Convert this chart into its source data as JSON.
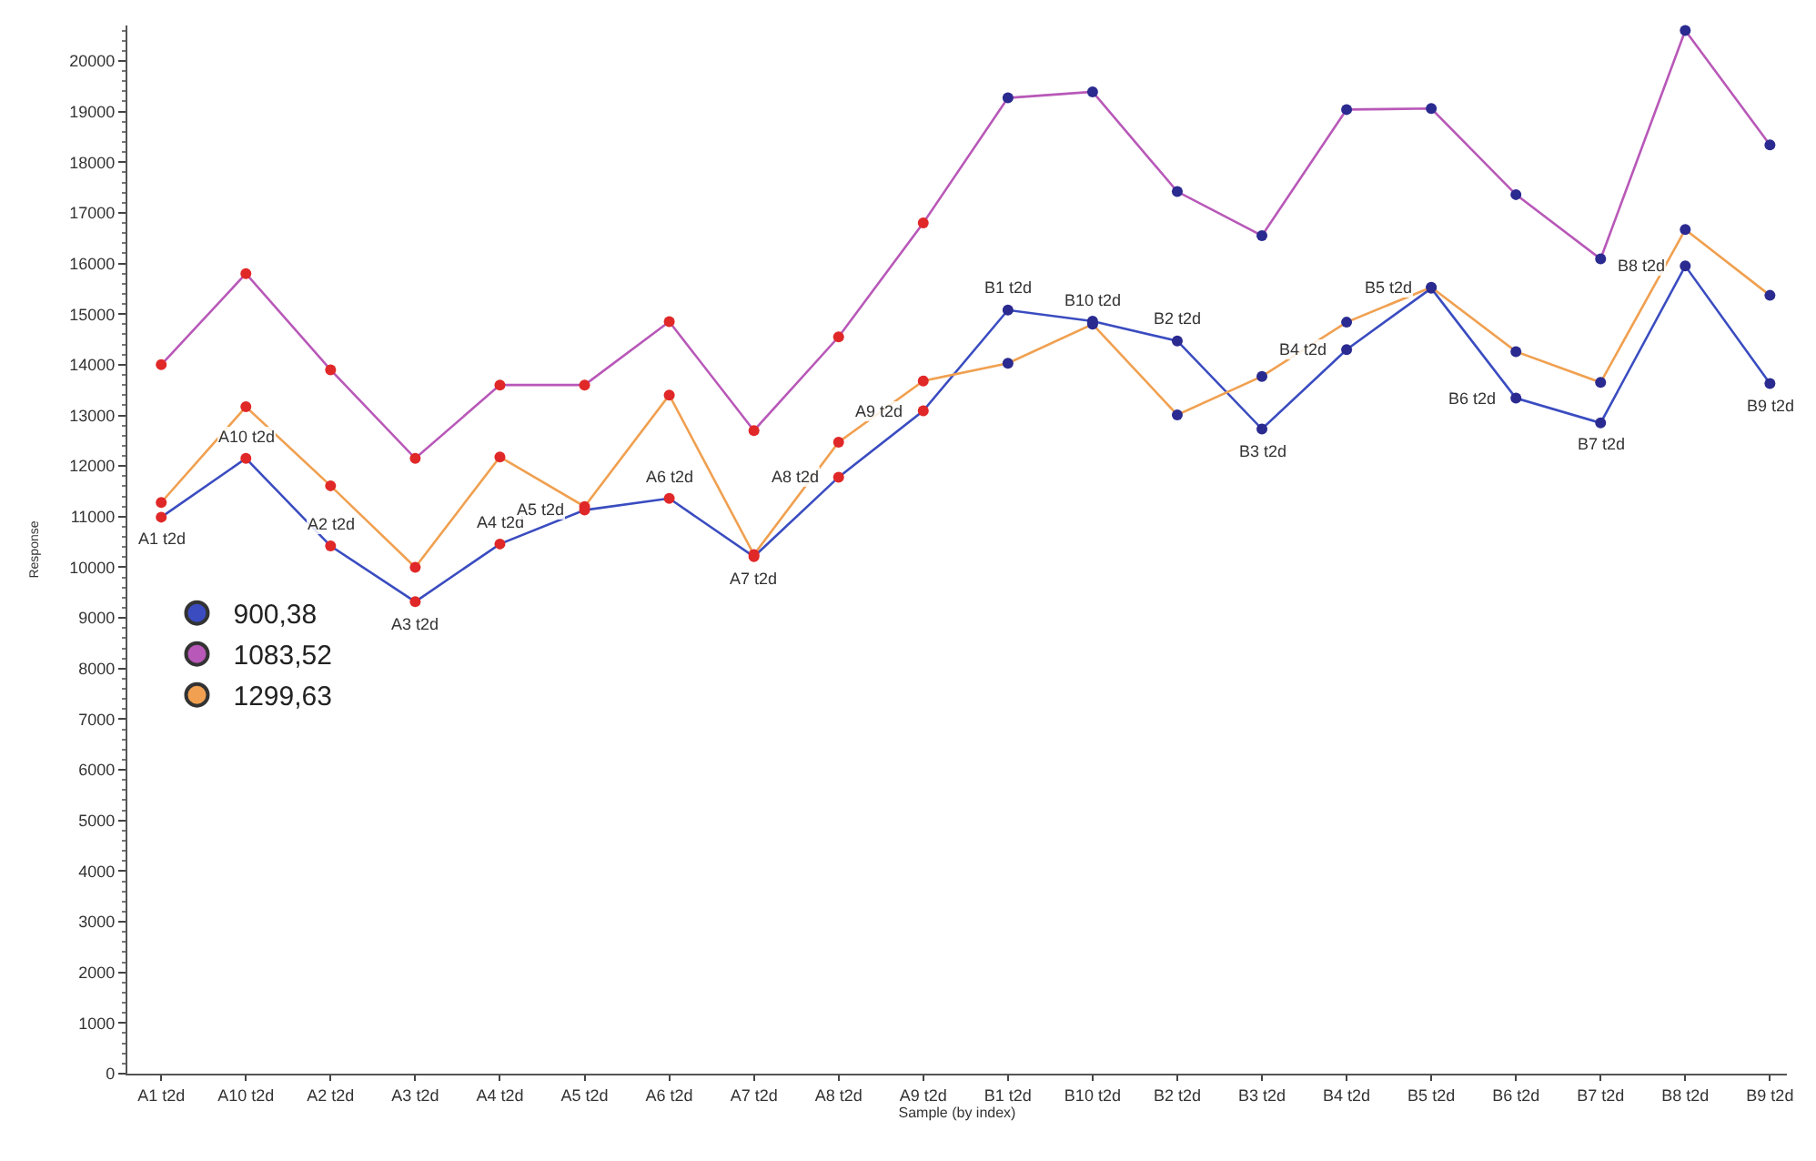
{
  "chart_data": {
    "type": "line",
    "xlabel": "Sample (by index)",
    "ylabel": "Response",
    "categories": [
      "A1 t2d",
      "A10 t2d",
      "A2 t2d",
      "A3 t2d",
      "A4 t2d",
      "A5 t2d",
      "A6 t2d",
      "A7 t2d",
      "A8 t2d",
      "A9 t2d",
      "B1 t2d",
      "B10 t2d",
      "B2 t2d",
      "B3 t2d",
      "B4 t2d",
      "B5 t2d",
      "B6 t2d",
      "B7 t2d",
      "B8 t2d",
      "B9 t2d"
    ],
    "series": [
      {
        "name": "900,38",
        "color": "#3a4cc0",
        "colors": [
          "#e02828",
          "#e02828",
          "#e02828",
          "#e02828",
          "#e02828",
          "#e02828",
          "#e02828",
          "#e02828",
          "#e02828",
          "#e02828",
          "#2a2a90",
          "#2a2a90",
          "#2a2a90",
          "#2a2a90",
          "#2a2a90",
          "#2a2a90",
          "#2a2a90",
          "#2a2a90",
          "#2a2a90",
          "#2a2a90"
        ],
        "values": [
          10990,
          12150,
          10420,
          9320,
          10460,
          11130,
          11360,
          10210,
          11780,
          13090,
          15080,
          14860,
          14470,
          12730,
          14300,
          15510,
          13340,
          12850,
          15950,
          13630
        ]
      },
      {
        "name": "1083,52",
        "color": "#b858b8",
        "colors": [
          "#e02828",
          "#e02828",
          "#e02828",
          "#e02828",
          "#e02828",
          "#e02828",
          "#e02828",
          "#e02828",
          "#e02828",
          "#e02828",
          "#2a2a90",
          "#2a2a90",
          "#2a2a90",
          "#2a2a90",
          "#2a2a90",
          "#2a2a90",
          "#2a2a90",
          "#2a2a90",
          "#2a2a90",
          "#2a2a90"
        ],
        "values": [
          14000,
          15800,
          13900,
          12150,
          13600,
          13600,
          14850,
          12700,
          14550,
          16800,
          19270,
          19390,
          17420,
          16550,
          19040,
          19060,
          17360,
          16090,
          20600,
          18340
        ]
      },
      {
        "name": "1299,63",
        "color": "#f0a050",
        "colors": [
          "#e02828",
          "#e02828",
          "#e02828",
          "#e02828",
          "#e02828",
          "#e02828",
          "#e02828",
          "#e02828",
          "#e02828",
          "#e02828",
          "#2a2a90",
          "#2a2a90",
          "#2a2a90",
          "#2a2a90",
          "#2a2a90",
          "#2a2a90",
          "#2a2a90",
          "#2a2a90",
          "#2a2a90",
          "#2a2a90"
        ],
        "values": [
          11280,
          13170,
          11610,
          10000,
          12180,
          11200,
          13400,
          10250,
          12470,
          13680,
          14030,
          14800,
          13010,
          13770,
          14840,
          15530,
          14260,
          13650,
          16670,
          15370
        ]
      }
    ],
    "annotations": [
      {
        "text": "A1 t2d",
        "x": "A1 t2d",
        "y": 10990
      },
      {
        "text": "A10 t2d",
        "x": "A10 t2d",
        "y": 12150
      },
      {
        "text": "A2 t2d",
        "x": "A2 t2d",
        "y": 10420
      },
      {
        "text": "A3 t2d",
        "x": "A3 t2d",
        "y": 9320
      },
      {
        "text": "A4 t2d",
        "x": "A4 t2d",
        "y": 10460
      },
      {
        "text": "A5 t2d",
        "x": "A5 t2d",
        "y": 11130
      },
      {
        "text": "A6 t2d",
        "x": "A6 t2d",
        "y": 11360
      },
      {
        "text": "A7 t2d",
        "x": "A7 t2d",
        "y": 10210
      },
      {
        "text": "A8 t2d",
        "x": "A8 t2d",
        "y": 11780
      },
      {
        "text": "A9 t2d",
        "x": "A9 t2d",
        "y": 13090
      },
      {
        "text": "B1 t2d",
        "x": "B1 t2d",
        "y": 15080
      },
      {
        "text": "B10 t2d",
        "x": "B10 t2d",
        "y": 14860
      },
      {
        "text": "B2 t2d",
        "x": "B2 t2d",
        "y": 14470
      },
      {
        "text": "B3 t2d",
        "x": "B3 t2d",
        "y": 12730
      },
      {
        "text": "B4 t2d",
        "x": "B4 t2d",
        "y": 14300
      },
      {
        "text": "B5 t2d",
        "x": "B5 t2d",
        "y": 15510
      },
      {
        "text": "B6 t2d",
        "x": "B6 t2d",
        "y": 13340
      },
      {
        "text": "B7 t2d",
        "x": "B7 t2d",
        "y": 12850
      },
      {
        "text": "B8 t2d",
        "x": "B8 t2d",
        "y": 15950
      },
      {
        "text": "B9 t2d",
        "x": "B9 t2d",
        "y": 13630
      }
    ],
    "ylim": [
      0,
      20700
    ],
    "yticks": [
      0,
      1000,
      2000,
      3000,
      4000,
      5000,
      6000,
      7000,
      8000,
      9000,
      10000,
      11000,
      12000,
      13000,
      14000,
      15000,
      16000,
      17000,
      18000,
      19000,
      20000
    ],
    "legend": "left",
    "marker": "circle",
    "line_style": "solid"
  }
}
